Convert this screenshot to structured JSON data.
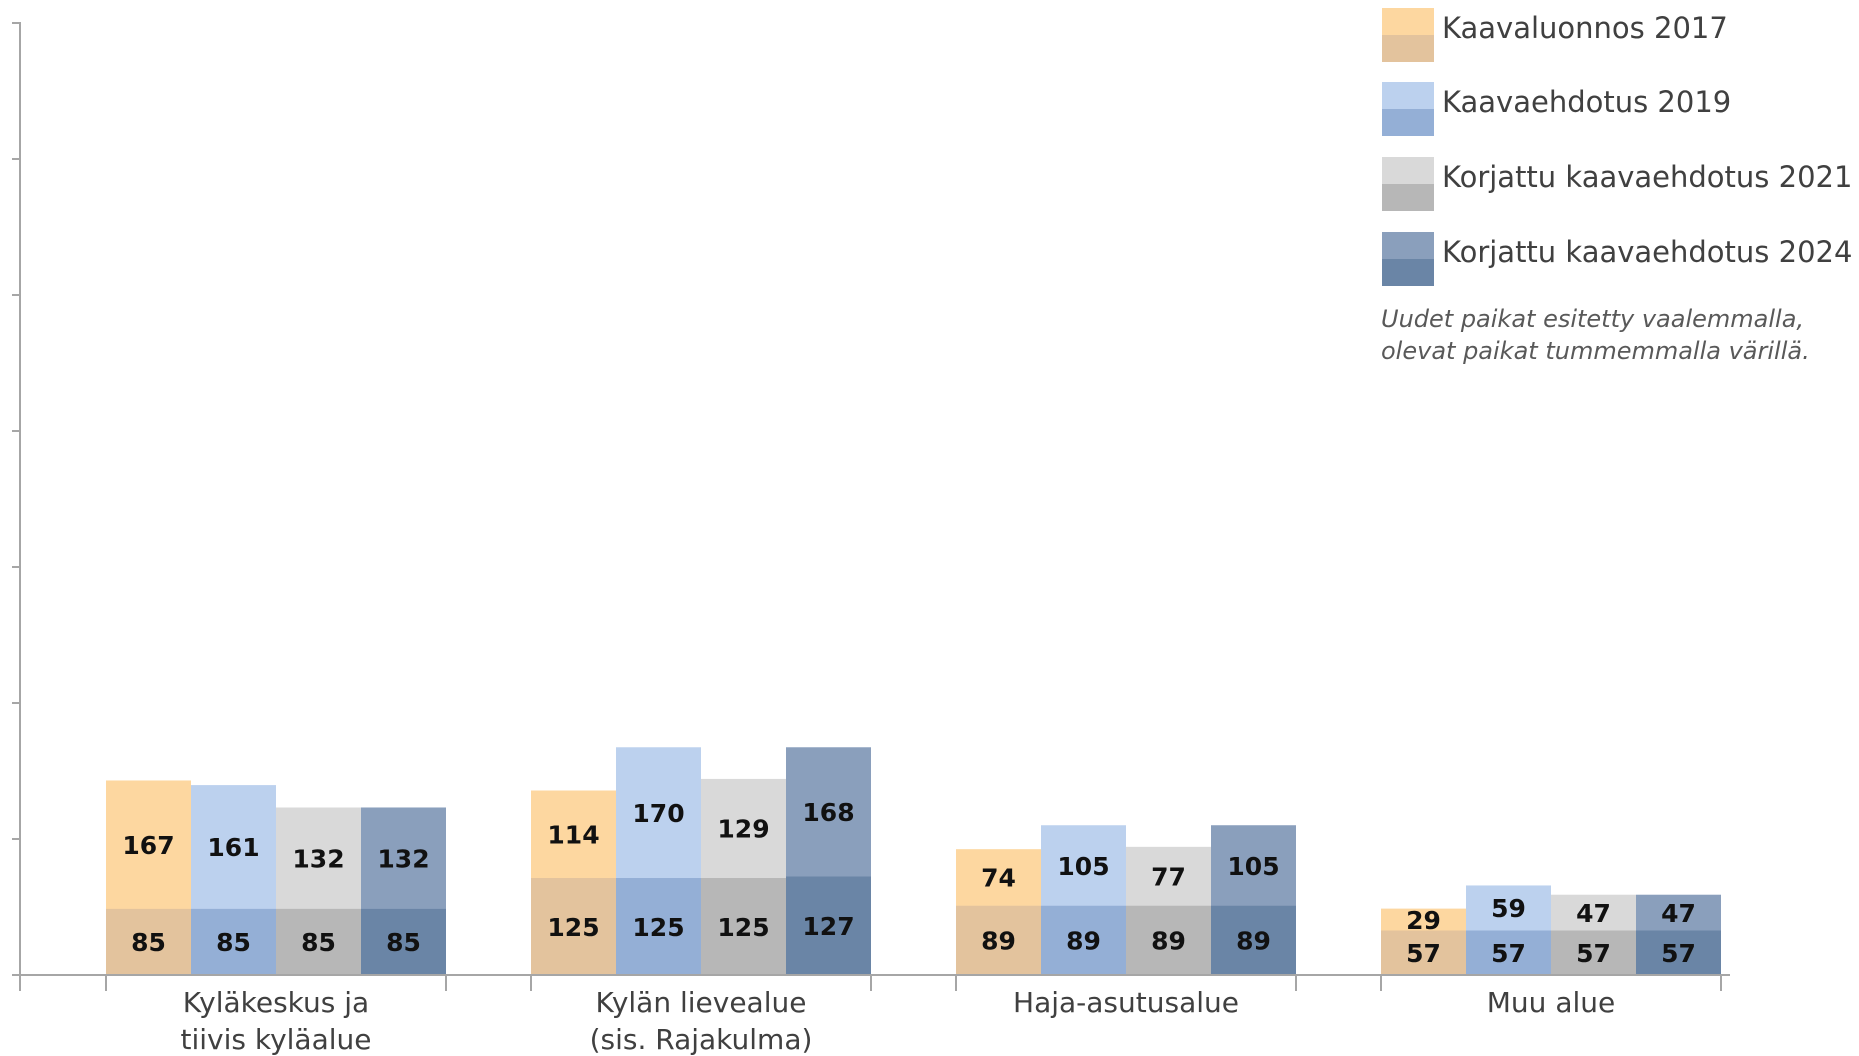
{
  "chart_data": {
    "type": "bar",
    "stacked": true,
    "categories": [
      [
        "Kyläkeskus ja",
        "tiivis kyläalue"
      ],
      [
        "Kylän lievealue",
        "(sis. Rajakulma)"
      ],
      [
        "Haja-asutusalue"
      ],
      [
        "Muu alue"
      ]
    ],
    "ylim": [
      0,
      350
    ],
    "series": [
      {
        "name": "Kaavaluonnos 2017",
        "existing": [
          85,
          125,
          89,
          57
        ],
        "new": [
          167,
          114,
          74,
          29
        ],
        "colors": {
          "new": "#fdd7a0",
          "existing": "#e3c39d"
        }
      },
      {
        "name": "Kaavaehdotus 2019",
        "existing": [
          85,
          125,
          89,
          57
        ],
        "new": [
          161,
          170,
          105,
          59
        ],
        "colors": {
          "new": "#bcd1ee",
          "existing": "#94afd6"
        }
      },
      {
        "name": "Korjattu kaavaehdotus 2021",
        "existing": [
          85,
          125,
          89,
          57
        ],
        "new": [
          132,
          129,
          77,
          47
        ],
        "colors": {
          "new": "#d9d9d9",
          "existing": "#b7b7b7"
        }
      },
      {
        "name": "Korjattu kaavaehdotus 2024",
        "existing": [
          85,
          127,
          89,
          57
        ],
        "new": [
          132,
          168,
          105,
          47
        ],
        "colors": {
          "new": "#8a9fbc",
          "existing": "#6a85a6"
        }
      }
    ],
    "note": [
      "Uudet paikat esitetty vaalemmalla,",
      "olevat paikat tummemmalla värillä."
    ],
    "legend_position": "top-right",
    "grid": false,
    "y_tick_labels_visible": false
  }
}
